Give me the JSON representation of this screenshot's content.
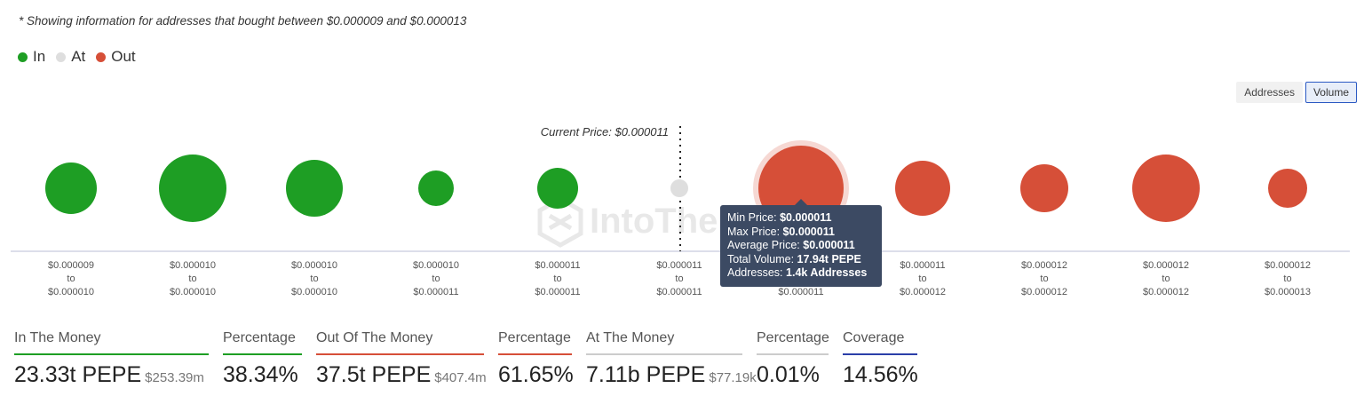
{
  "note": "* Showing information for addresses that bought between $0.000009 and $0.000013",
  "legend": [
    {
      "label": "In",
      "color": "#1e9e24"
    },
    {
      "label": "At",
      "color": "#dedede"
    },
    {
      "label": "Out",
      "color": "#d64f38"
    }
  ],
  "toggle": {
    "addresses": "Addresses",
    "volume": "Volume",
    "active": "volume"
  },
  "watermark": "IntoThe",
  "tooltip": {
    "min_label": "Min Price:",
    "min_value": "$0.000011",
    "max_label": "Max Price:",
    "max_value": "$0.000011",
    "avg_label": "Average Price:",
    "avg_value": "$0.000011",
    "vol_label": "Total Volume:",
    "vol_value": "17.94t PEPE",
    "addr_label": "Addresses:",
    "addr_value": "1.4k Addresses"
  },
  "chart_data": {
    "type": "scatter",
    "current_price_label": "Current Price: $0.000011",
    "current_price_index": 5,
    "categories": [
      {
        "from": "$0.000009",
        "to": "$0.000010",
        "status": "in",
        "size": 29
      },
      {
        "from": "$0.000010",
        "to": "$0.000010",
        "status": "in",
        "size": 38
      },
      {
        "from": "$0.000010",
        "to": "$0.000010",
        "status": "in",
        "size": 32
      },
      {
        "from": "$0.000010",
        "to": "$0.000011",
        "status": "in",
        "size": 20
      },
      {
        "from": "$0.000011",
        "to": "$0.000011",
        "status": "in",
        "size": 23
      },
      {
        "from": "$0.000011",
        "to": "$0.000011",
        "status": "at",
        "size": 10
      },
      {
        "from": "$0.000011",
        "to": "$0.000011",
        "status": "out",
        "size": 48,
        "highlighted": true
      },
      {
        "from": "$0.000011",
        "to": "$0.000012",
        "status": "out",
        "size": 31
      },
      {
        "from": "$0.000012",
        "to": "$0.000012",
        "status": "out",
        "size": 27
      },
      {
        "from": "$0.000012",
        "to": "$0.000012",
        "status": "out",
        "size": 38
      },
      {
        "from": "$0.000012",
        "to": "$0.000013",
        "status": "out",
        "size": 22
      }
    ],
    "connector": "to",
    "colors": {
      "in": "#1e9e24",
      "at": "#dedede",
      "out": "#d64f38",
      "axis": "#d0d4e4"
    }
  },
  "stats": [
    {
      "label": "In The Money",
      "value": "23.33t PEPE",
      "sub": "$253.39m",
      "color": "#1e9e24"
    },
    {
      "label": "Percentage",
      "value": "38.34%",
      "sub": "",
      "color": "#1e9e24"
    },
    {
      "label": "Out Of The Money",
      "value": "37.5t PEPE",
      "sub": "$407.4m",
      "color": "#d64f38"
    },
    {
      "label": "Percentage",
      "value": "61.65%",
      "sub": "",
      "color": "#d64f38"
    },
    {
      "label": "At The Money",
      "value": "7.11b PEPE",
      "sub": "$77.19k",
      "color": "#cccccc"
    },
    {
      "label": "Percentage",
      "value": "0.01%",
      "sub": "",
      "color": "#cccccc"
    },
    {
      "label": "Coverage",
      "value": "14.56%",
      "sub": "",
      "color": "#2b3fa8"
    }
  ]
}
